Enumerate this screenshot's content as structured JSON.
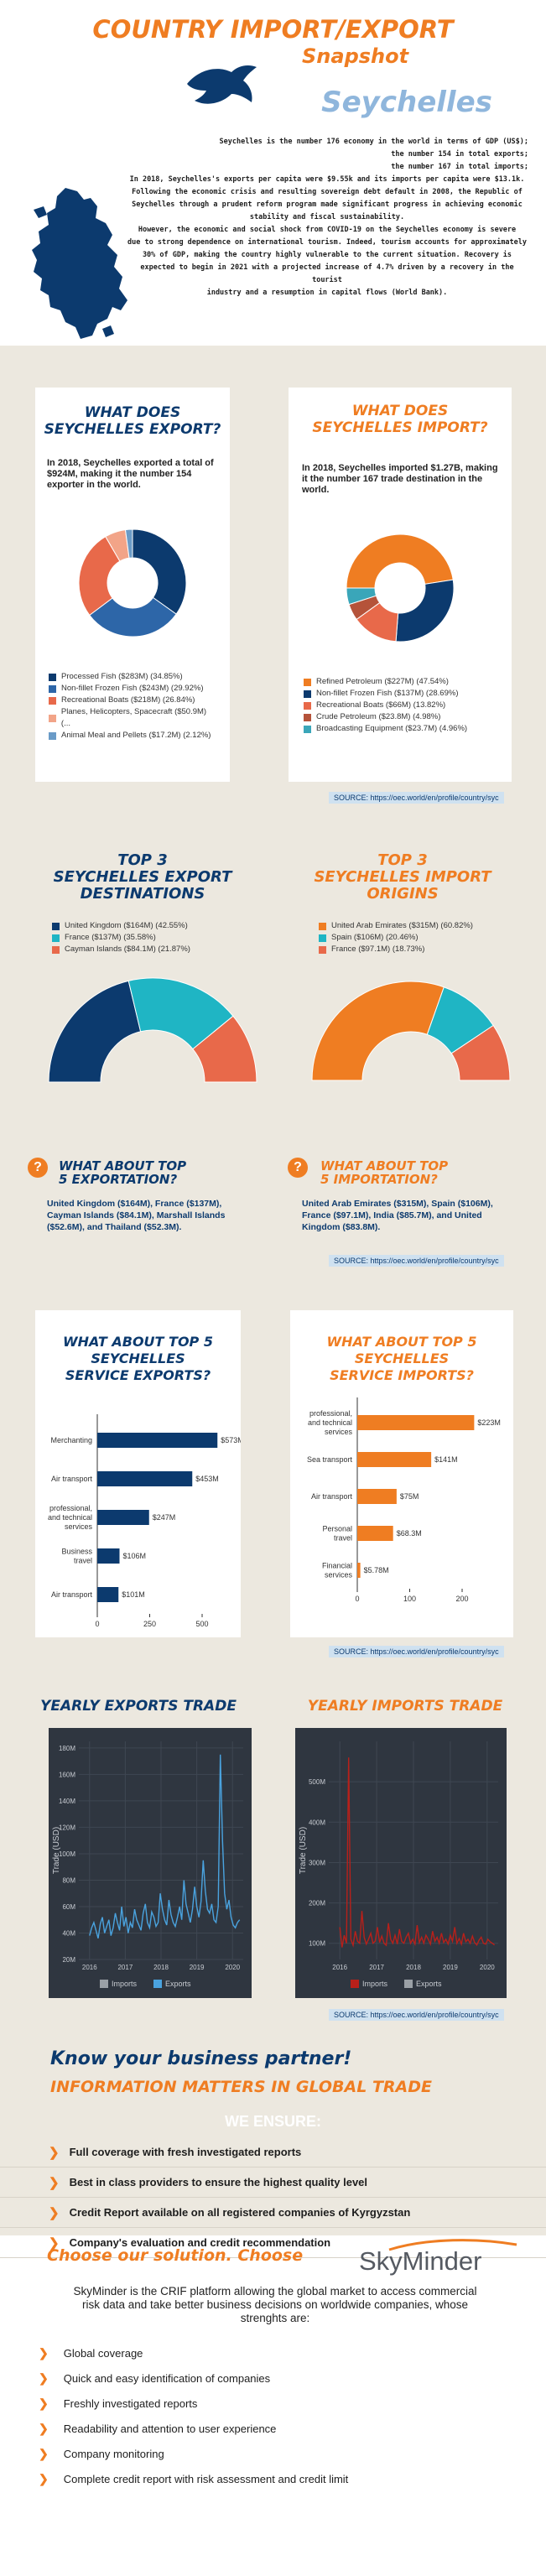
{
  "header": {
    "title_line1": "COUNTRY IMPORT/EXPORT",
    "title_line2": "Snapshot",
    "country": "Seychelles",
    "intro_lines": [
      "Seychelles is  the number 176 economy in the world in terms of GDP (US$);",
      "the number 154 in total exports;",
      "the number 167 in total imports;",
      "In 2018, Seychelles's exports per capita were $9.55k and its imports per capita were $13.1k.",
      "Following the economic crisis and resulting sovereign debt default in 2008, the Republic of",
      "Seychelles through a prudent reform program made significant progress in achieving economic",
      "stability and fiscal sustainability.",
      "However, the economic and social shock from COVID-19 on the Seychelles economy is severe",
      "due to strong dependence on international tourism. Indeed, tourism accounts for approximately",
      "30% of GDP, making the country highly vulnerable to the current situation.  Recovery is",
      "expected to begin in 2021 with a projected increase of 4.7% driven by a recovery in the tourist",
      "industry and a resumption in capital flows (World Bank)."
    ]
  },
  "exports_card": {
    "title_line1": "WHAT DOES",
    "title_line2": "SEYCHELLES EXPORT?",
    "lead": "In 2018, Seychelles exported a total of $924M, making it the number 154 exporter in the world.",
    "legend": [
      {
        "label": "Processed Fish ($283M) (34.85%)",
        "value": 34.85,
        "color": "#0c3a6e"
      },
      {
        "label": "Non-fillet Frozen Fish ($243M) (29.92%)",
        "value": 29.92,
        "color": "#2d66a8"
      },
      {
        "label": "Recreational Boats ($218M) (26.84%)",
        "value": 26.84,
        "color": "#e8694a"
      },
      {
        "label": "Planes, Helicopters, Spacecraft ($50.9M) (...",
        "value": 6.27,
        "color": "#f2a488"
      },
      {
        "label": "Animal Meal and Pellets ($17.2M) (2.12%)",
        "value": 2.12,
        "color": "#6a9bc7"
      }
    ]
  },
  "imports_card": {
    "title_line1": "WHAT DOES",
    "title_line2": "SEYCHELLES IMPORT?",
    "lead": "In 2018, Seychelles imported $1.27B, making it the number 167 trade destination in the world.",
    "legend": [
      {
        "label": "Refined Petroleum ($227M) (47.54%)",
        "value": 47.54,
        "color": "#ef7d22"
      },
      {
        "label": "Non-fillet Frozen Fish ($137M) (28.69%)",
        "value": 28.69,
        "color": "#0c3a6e"
      },
      {
        "label": "Recreational Boats ($66M) (13.82%)",
        "value": 13.82,
        "color": "#e8694a"
      },
      {
        "label": "Crude Petroleum ($23.8M) (4.98%)",
        "value": 4.98,
        "color": "#b5533a"
      },
      {
        "label": "Broadcasting Equipment ($23.7M) (4.96%)",
        "value": 4.96,
        "color": "#3aa6b9"
      }
    ]
  },
  "source_text": "SOURCE: https://oec.world/en/profile/country/syc",
  "top3_exports": {
    "title_line1": "TOP 3",
    "title_line2": "SEYCHELLES EXPORT",
    "title_line3": "DESTINATIONS",
    "legend": [
      {
        "label": "United Kingdom ($164M) (42.55%)",
        "value": 42.55,
        "color": "#0c3a6e"
      },
      {
        "label": "France ($137M) (35.58%)",
        "value": 35.58,
        "color": "#1fb5c4"
      },
      {
        "label": "Cayman Islands ($84.1M) (21.87%)",
        "value": 21.87,
        "color": "#e8694a"
      }
    ]
  },
  "top3_imports": {
    "title_line1": "TOP 3",
    "title_line2": "SEYCHELLES IMPORT",
    "title_line3": "ORIGINS",
    "legend": [
      {
        "label": "United Arab Emirates ($315M) (60.82%)",
        "value": 60.82,
        "color": "#ef7d22"
      },
      {
        "label": "Spain ($106M) (20.46%)",
        "value": 20.46,
        "color": "#1fb5c4"
      },
      {
        "label": "France ($97.1M) (18.73%)",
        "value": 18.73,
        "color": "#e8694a"
      }
    ]
  },
  "top5_exports": {
    "icon": "?",
    "title_line1": "WHAT ABOUT TOP",
    "title_line2": "5 EXPORTATION?",
    "text": "United Kingdom ($164M), France ($137M), Cayman Islands ($84.1M), Marshall Islands ($52.6M), and Thailand ($52.3M)."
  },
  "top5_imports": {
    "icon": "?",
    "title_line1": "WHAT ABOUT TOP",
    "title_line2": "5 IMPORTATION?",
    "text": "United Arab Emirates ($315M), Spain ($106M), France ($97.1M), India ($85.7M), and United Kingdom ($83.8M)."
  },
  "service_exports": {
    "title_line1": "WHAT ABOUT TOP 5",
    "title_line2": "SEYCHELLES",
    "title_line3": "SERVICE EXPORTS?",
    "chart_data": {
      "type": "bar",
      "orientation": "horizontal",
      "categories": [
        "Merchanting",
        "Air transport",
        "professional, and technical services",
        "Business travel",
        "Air transport"
      ],
      "values": [
        573,
        453,
        247,
        106,
        101
      ],
      "value_labels": [
        "$573M",
        "$453M",
        "$247M",
        "$106M",
        "$101M"
      ],
      "xticks": [
        "0",
        "250",
        "500"
      ],
      "xlim": [
        0,
        600
      ],
      "color": "#0c3a6e"
    }
  },
  "service_imports": {
    "title_line1": "WHAT ABOUT TOP 5",
    "title_line2": "SEYCHELLES",
    "title_line3": "SERVICE IMPORTS?",
    "chart_data": {
      "type": "bar",
      "orientation": "horizontal",
      "categories": [
        "professional, and technical services",
        "Sea transport",
        "Air transport",
        "Personal travel",
        "Financial services"
      ],
      "values": [
        223,
        141,
        75,
        68.3,
        5.78
      ],
      "value_labels": [
        "$223M",
        "$141M",
        "$75M",
        "$68.3M",
        "$5.78M"
      ],
      "xticks": [
        "0",
        "100",
        "200"
      ],
      "xlim": [
        0,
        240
      ],
      "color": "#ef7d22"
    }
  },
  "yearly_exports": {
    "title": "YEARLY EXPORTS TRADE",
    "chart_data": {
      "type": "line",
      "ylabel": "Trade (USD)",
      "yticks": [
        "20M",
        "40M",
        "60M",
        "80M",
        "100M",
        "120M",
        "140M",
        "160M",
        "180M"
      ],
      "ylim": [
        20,
        185
      ],
      "xticks": [
        "2016",
        "2017",
        "2018",
        "2019",
        "2020"
      ],
      "xlim": [
        2015.7,
        2020.3
      ],
      "legend": [
        "Imports",
        "Exports"
      ],
      "series": [
        {
          "name": "Exports",
          "color": "#4aa3df",
          "values": [
            38,
            44,
            48,
            42,
            36,
            47,
            52,
            40,
            45,
            50,
            38,
            44,
            55,
            48,
            42,
            60,
            45,
            52,
            40,
            48,
            44,
            58,
            50,
            46,
            42,
            55,
            62,
            48,
            44,
            56,
            52,
            45,
            48,
            70,
            58,
            50,
            46,
            65,
            54,
            48,
            45,
            52,
            60,
            50,
            80,
            62,
            55,
            48,
            58,
            75,
            60,
            52,
            64,
            95,
            72,
            58,
            55,
            62,
            50,
            48,
            60,
            175,
            110,
            70,
            58,
            65,
            52,
            46,
            44,
            48,
            50
          ]
        }
      ]
    }
  },
  "yearly_imports": {
    "title": "YEARLY IMPORTS TRADE",
    "chart_data": {
      "type": "line",
      "ylabel": "Trade (USD)",
      "yticks": [
        "100M",
        "200M",
        "300M",
        "400M",
        "500M"
      ],
      "ylim": [
        60,
        600
      ],
      "xticks": [
        "2016",
        "2017",
        "2018",
        "2019",
        "2020"
      ],
      "xlim": [
        2015.7,
        2020.3
      ],
      "legend": [
        "Imports",
        "Exports"
      ],
      "series": [
        {
          "name": "Imports",
          "color": "#b8201a",
          "values": [
            140,
            90,
            120,
            100,
            560,
            110,
            95,
            130,
            105,
            100,
            180,
            115,
            98,
            110,
            125,
            100,
            105,
            140,
            102,
            118,
            100,
            95,
            150,
            110,
            100,
            120,
            98,
            135,
            105,
            100,
            115,
            125,
            100,
            110,
            98,
            145,
            102,
            115,
            100,
            120,
            110,
            98,
            130,
            105,
            115,
            100,
            125,
            102,
            110,
            98,
            120,
            105,
            140,
            100,
            112,
            98,
            125,
            104,
            110,
            100,
            118,
            102,
            96,
            108,
            115,
            100,
            98,
            110,
            104,
            100,
            96
          ]
        }
      ]
    }
  },
  "partner": {
    "title1": "Know your business partner!",
    "title2": "INFORMATION MATTERS IN GLOBAL TRADE",
    "ensure_label": "WE ENSURE:",
    "items": [
      "Full coverage with fresh investigated reports",
      "Best in class providers to ensure the highest quality level",
      "Credit Report available on all registered companies of Kyrgyzstan",
      "Company's evaluation and credit recommendation"
    ]
  },
  "skyminder": {
    "heading": "Choose our solution. Choose",
    "logo_text": "SkyMinder",
    "description": "SkyMinder is the CRIF platform allowing the global market to access commercial risk data and take better business decisions on worldwide companies, whose strenghts are:",
    "items": [
      "Global coverage",
      "Quick and easy identification of companies",
      "Freshly investigated reports",
      "Readability and attention to user experience",
      "Company monitoring",
      "Complete credit report with risk assessment and credit limit"
    ]
  },
  "icons": {
    "bullet": "chevron-right-icon",
    "question": "question-icon",
    "flag": "bird-silhouette-icon",
    "map": "island-map-icon"
  }
}
